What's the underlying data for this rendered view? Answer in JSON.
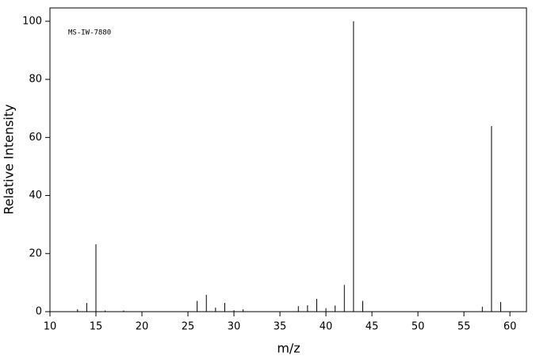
{
  "chart_data": {
    "type": "stem",
    "annotation": "MS-IW-7880",
    "x_label": "m/z",
    "y_label": "Relative Intensity",
    "x": [
      13,
      14,
      15,
      16,
      18,
      26,
      27,
      28,
      29,
      30,
      31,
      37,
      38,
      39,
      40,
      41,
      42,
      43,
      44,
      57,
      58,
      59
    ],
    "values": [
      0.8,
      3,
      23.2,
      0.4,
      0.4,
      3.7,
      5.8,
      1.4,
      3,
      0.5,
      0.8,
      1.9,
      2.2,
      4.4,
      1.2,
      2.1,
      9.2,
      100,
      3.7,
      1.7,
      63.9,
      3.3
    ],
    "color": "#000000",
    "xlim": [
      10,
      61.8
    ],
    "xticks": [
      10,
      15,
      20,
      25,
      30,
      35,
      40,
      45,
      50,
      55,
      60
    ],
    "ylim": [
      0,
      104.6
    ],
    "yticks": [
      0,
      20,
      40,
      60,
      80,
      100
    ]
  }
}
